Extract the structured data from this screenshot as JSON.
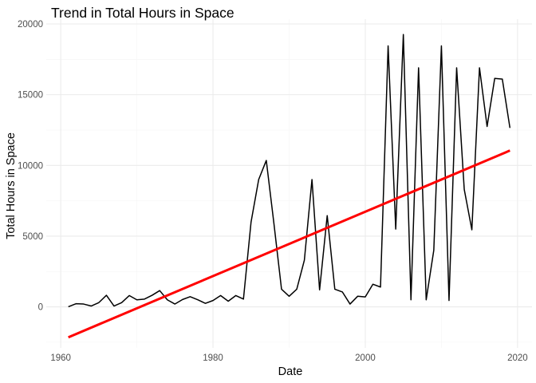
{
  "chart_data": {
    "type": "line",
    "title": "Trend in Total Hours in Space",
    "xlabel": "Date",
    "ylabel": "Total Hours in Space",
    "xlim": [
      1958.1,
      2021.9
    ],
    "ylim": [
      -2900,
      20000
    ],
    "x_ticks": [
      1960,
      1980,
      2000,
      2020
    ],
    "y_ticks": [
      0,
      5000,
      10000,
      15000,
      20000
    ],
    "x_tick_labels": [
      "1960",
      "1980",
      "2000",
      "2020"
    ],
    "y_tick_labels": [
      "0",
      "5000",
      "10000",
      "15000",
      "20000"
    ],
    "grid": true,
    "legend": "none",
    "series": [
      {
        "color": "#000000",
        "x": [
          1961,
          1962,
          1963,
          1964,
          1965,
          1966,
          1967,
          1968,
          1969,
          1970,
          1971,
          1972,
          1973,
          1974,
          1975,
          1976,
          1977,
          1978,
          1979,
          1980,
          1981,
          1982,
          1983,
          1984,
          1985,
          1986,
          1987,
          1988,
          1989,
          1990,
          1991,
          1992,
          1993,
          1994,
          1995,
          1996,
          1997,
          1998,
          1999,
          2000,
          2001,
          2002,
          2003,
          2004,
          2005,
          2006,
          2007,
          2008,
          2009,
          2010,
          2011,
          2012,
          2013,
          2014,
          2015,
          2016,
          2017,
          2018,
          2019
        ],
        "y": [
          10,
          220,
          200,
          60,
          300,
          820,
          60,
          300,
          800,
          500,
          550,
          820,
          1150,
          500,
          200,
          520,
          720,
          500,
          250,
          450,
          800,
          400,
          800,
          550,
          6000,
          9000,
          10350,
          5900,
          1250,
          750,
          1250,
          3300,
          9000,
          1200,
          6450,
          1250,
          1050,
          200,
          750,
          700,
          1600,
          1400,
          18450,
          5500,
          19250,
          500,
          16900,
          500,
          4000,
          18450,
          450,
          16900,
          8300,
          5450,
          16900,
          12750,
          16150,
          16100,
          12650
        ]
      },
      {
        "color": "#ff0000",
        "x": [
          1961,
          2019
        ],
        "y": [
          -2150,
          11050
        ]
      }
    ]
  }
}
